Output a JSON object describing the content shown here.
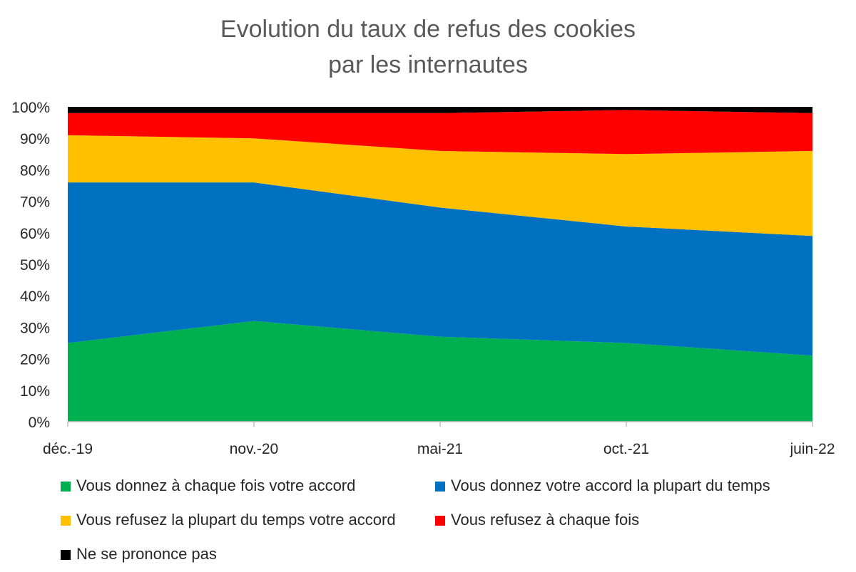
{
  "chart_data": {
    "type": "area",
    "stacked": true,
    "title": [
      "Evolution du taux de refus des cookies",
      "par les internautes"
    ],
    "categories": [
      "déc.-19",
      "nov.-20",
      "mai-21",
      "oct.-21",
      "juin-22"
    ],
    "y_ticks": [
      "0%",
      "10%",
      "20%",
      "30%",
      "40%",
      "50%",
      "60%",
      "70%",
      "80%",
      "90%",
      "100%"
    ],
    "ylim": [
      0,
      100
    ],
    "grid": false,
    "legend_position": "bottom",
    "series": [
      {
        "name": "Vous donnez à chaque fois votre accord",
        "color": "#00B050",
        "values": [
          25,
          32,
          27,
          25,
          21
        ]
      },
      {
        "name": "Vous donnez votre accord la plupart du temps",
        "color": "#0070C0",
        "values": [
          51,
          44,
          41,
          37,
          38
        ]
      },
      {
        "name": "Vous refusez la plupart du temps votre accord",
        "color": "#FFC000",
        "values": [
          15,
          14,
          18,
          23,
          27
        ]
      },
      {
        "name": "Vous refusez à chaque fois",
        "color": "#FF0000",
        "values": [
          7,
          8,
          12,
          14,
          12
        ]
      },
      {
        "name": "Ne se prononce pas",
        "color": "#000000",
        "values": [
          2,
          2,
          2,
          1,
          2
        ]
      }
    ]
  }
}
